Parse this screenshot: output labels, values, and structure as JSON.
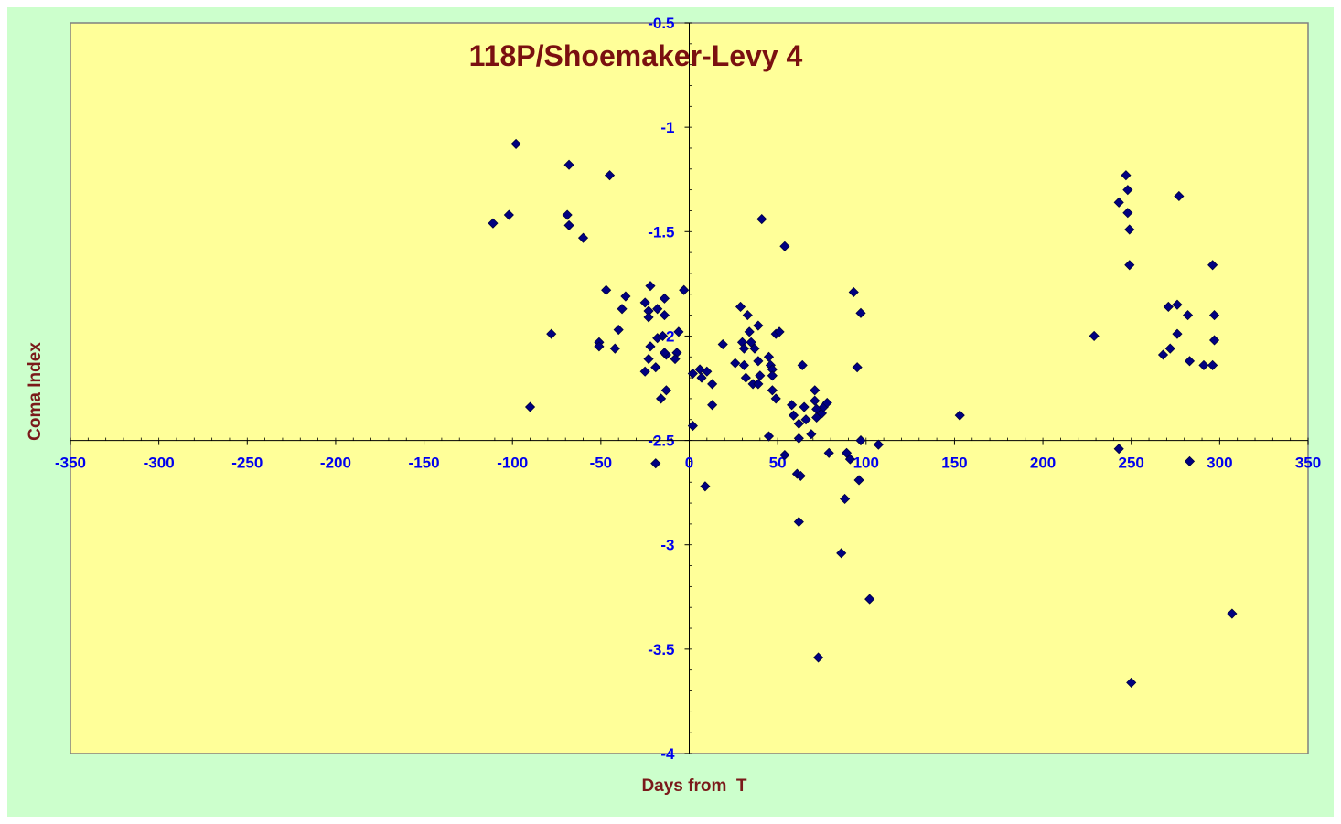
{
  "chart_data": {
    "type": "scatter",
    "title": "118P/Shoemaker-Levy 4",
    "xlabel": "Days from  T",
    "ylabel": "Coma Index",
    "xlim": [
      -350,
      350
    ],
    "ylim": [
      -4,
      -0.5
    ],
    "x_ticks": [
      "-350",
      "-300",
      "-250",
      "-200",
      "-150",
      "-100",
      "-50",
      "0",
      "50",
      "100",
      "150",
      "200",
      "250",
      "300",
      "350"
    ],
    "y_ticks": [
      "-0.5",
      "-1",
      "-1.5",
      "-2",
      "-2.5",
      "-3",
      "-3.5",
      "-4"
    ],
    "grid": false,
    "legend": "none",
    "colors": {
      "outer_background": "#ccffcc",
      "plot_background": "#ffff99",
      "marker": "#000080",
      "tick_labels": "#0000ee",
      "title": "#7a1010"
    },
    "series": [
      {
        "marker": "diamond",
        "points": [
          [
            -111,
            -1.46
          ],
          [
            -102,
            -1.42
          ],
          [
            -98,
            -1.08
          ],
          [
            -90,
            -2.34
          ],
          [
            -78,
            -1.99
          ],
          [
            -68,
            -1.18
          ],
          [
            -69,
            -1.42
          ],
          [
            -68,
            -1.47
          ],
          [
            -60,
            -1.53
          ],
          [
            -45,
            -1.23
          ],
          [
            -47,
            -1.78
          ],
          [
            -51,
            -2.03
          ],
          [
            -51,
            -2.05
          ],
          [
            -42,
            -2.06
          ],
          [
            -40,
            -1.97
          ],
          [
            -38,
            -1.87
          ],
          [
            -36,
            -1.81
          ],
          [
            -25,
            -1.84
          ],
          [
            -22,
            -1.76
          ],
          [
            -23,
            -1.88
          ],
          [
            -23,
            -1.91
          ],
          [
            -18,
            -1.87
          ],
          [
            -14,
            -1.82
          ],
          [
            -14,
            -1.9
          ],
          [
            -22,
            -2.05
          ],
          [
            -18,
            -2.01
          ],
          [
            -15,
            -2.0
          ],
          [
            -23,
            -2.11
          ],
          [
            -25,
            -2.17
          ],
          [
            -19,
            -2.15
          ],
          [
            -13,
            -2.09
          ],
          [
            -14,
            -2.08
          ],
          [
            -7,
            -2.08
          ],
          [
            -8,
            -2.11
          ],
          [
            -6,
            -1.98
          ],
          [
            -3,
            -1.78
          ],
          [
            -13,
            -2.26
          ],
          [
            -16,
            -2.3
          ],
          [
            -19,
            -2.61
          ],
          [
            2,
            -2.18
          ],
          [
            6,
            -2.16
          ],
          [
            7,
            -2.2
          ],
          [
            10,
            -2.17
          ],
          [
            13,
            -2.23
          ],
          [
            13,
            -2.33
          ],
          [
            2,
            -2.43
          ],
          [
            9,
            -2.72
          ],
          [
            19,
            -2.04
          ],
          [
            26,
            -2.13
          ],
          [
            29,
            -1.86
          ],
          [
            30,
            -2.03
          ],
          [
            31,
            -2.06
          ],
          [
            31,
            -2.14
          ],
          [
            32,
            -2.2
          ],
          [
            33,
            -1.9
          ],
          [
            34,
            -1.98
          ],
          [
            35,
            -2.03
          ],
          [
            36,
            -2.23
          ],
          [
            37,
            -2.06
          ],
          [
            39,
            -1.95
          ],
          [
            39,
            -2.12
          ],
          [
            40,
            -2.19
          ],
          [
            39,
            -2.23
          ],
          [
            41,
            -1.44
          ],
          [
            45,
            -2.1
          ],
          [
            46,
            -2.14
          ],
          [
            47,
            -2.16
          ],
          [
            47,
            -2.19
          ],
          [
            47,
            -2.26
          ],
          [
            49,
            -2.3
          ],
          [
            49,
            -1.99
          ],
          [
            51,
            -1.98
          ],
          [
            45,
            -2.48
          ],
          [
            54,
            -1.57
          ],
          [
            54,
            -2.57
          ],
          [
            58,
            -2.33
          ],
          [
            59,
            -2.38
          ],
          [
            61,
            -2.66
          ],
          [
            62,
            -2.49
          ],
          [
            62,
            -2.42
          ],
          [
            63,
            -2.67
          ],
          [
            64,
            -2.14
          ],
          [
            65,
            -2.34
          ],
          [
            66,
            -2.4
          ],
          [
            69,
            -2.47
          ],
          [
            71,
            -2.26
          ],
          [
            71,
            -2.31
          ],
          [
            72,
            -2.35
          ],
          [
            72,
            -2.39
          ],
          [
            75,
            -2.37
          ],
          [
            76,
            -2.34
          ],
          [
            78,
            -2.32
          ],
          [
            79,
            -2.56
          ],
          [
            62,
            -2.89
          ],
          [
            73,
            -3.54
          ],
          [
            86,
            -3.04
          ],
          [
            88,
            -2.78
          ],
          [
            89,
            -2.56
          ],
          [
            91,
            -2.59
          ],
          [
            93,
            -1.79
          ],
          [
            95,
            -2.15
          ],
          [
            96,
            -2.69
          ],
          [
            97,
            -1.89
          ],
          [
            97,
            -2.5
          ],
          [
            102,
            -3.26
          ],
          [
            107,
            -2.52
          ],
          [
            153,
            -2.38
          ],
          [
            229,
            -2.0
          ],
          [
            243,
            -2.54
          ],
          [
            243,
            -1.36
          ],
          [
            247,
            -1.23
          ],
          [
            248,
            -1.3
          ],
          [
            248,
            -1.41
          ],
          [
            249,
            -1.49
          ],
          [
            249,
            -1.66
          ],
          [
            250,
            -3.66
          ],
          [
            268,
            -2.09
          ],
          [
            271,
            -1.86
          ],
          [
            272,
            -2.06
          ],
          [
            276,
            -1.85
          ],
          [
            276,
            -1.99
          ],
          [
            277,
            -1.33
          ],
          [
            282,
            -1.9
          ],
          [
            283,
            -2.12
          ],
          [
            283,
            -2.6
          ],
          [
            291,
            -2.14
          ],
          [
            296,
            -1.66
          ],
          [
            296,
            -2.14
          ],
          [
            297,
            -1.9
          ],
          [
            297,
            -2.02
          ],
          [
            307,
            -3.33
          ]
        ]
      }
    ]
  }
}
